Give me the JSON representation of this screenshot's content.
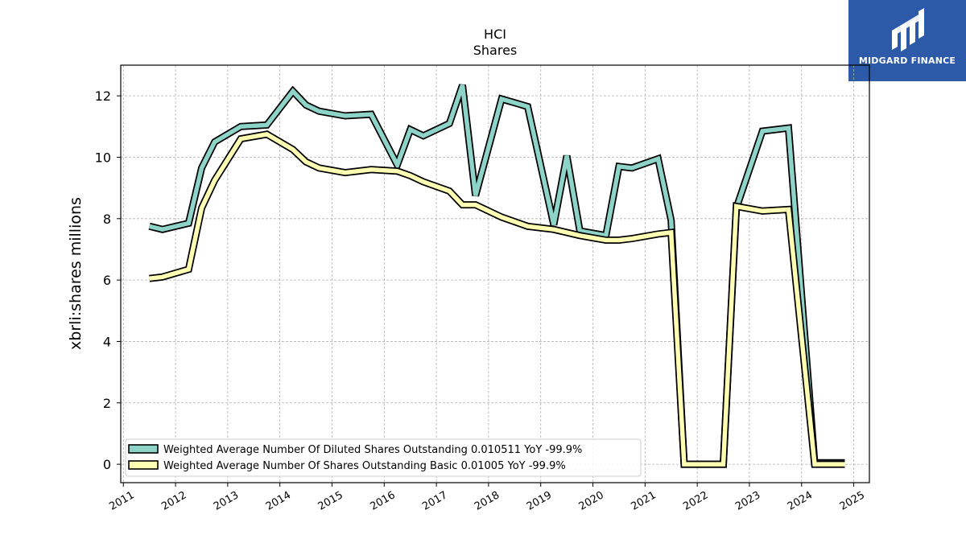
{
  "logo": {
    "text": "MIDGARD FINANCE",
    "icon": "midgard-logo-icon",
    "background": "#2d5aa8"
  },
  "chart_data": {
    "type": "line",
    "title": "HCI",
    "subtitle": "Shares",
    "ylabel": "xbrli:shares millions",
    "xlabel": "",
    "ylim": [
      -0.6,
      13.0
    ],
    "xlim": [
      2010.95,
      2025.3
    ],
    "yticks": [
      0,
      2,
      4,
      6,
      8,
      10,
      12
    ],
    "xticks": [
      "2011",
      "2012",
      "2013",
      "2014",
      "2015",
      "2016",
      "2017",
      "2018",
      "2019",
      "2020",
      "2021",
      "2022",
      "2023",
      "2024",
      "2025"
    ],
    "grid": true,
    "legend_position": "lower-left",
    "series": [
      {
        "name": "Weighted Average Number Of Diluted Shares Outstanding",
        "legend_label": "Weighted Average Number Of Diluted Shares Outstanding  0.010511 YoY -99.9%",
        "color": "#8dd3c7",
        "x": [
          2011.5,
          2011.75,
          2012.25,
          2012.5,
          2012.75,
          2013.25,
          2013.75,
          2014.25,
          2014.5,
          2014.75,
          2015.25,
          2015.75,
          2016.25,
          2016.5,
          2016.75,
          2017.25,
          2017.5,
          2017.75,
          2018.25,
          2018.75,
          2019.25,
          2019.5,
          2019.75,
          2020.25,
          2020.5,
          2020.75,
          2021.25,
          2021.5,
          2021.75,
          2022.5,
          2022.75,
          2023.25,
          2023.75,
          2024.25,
          2024.83
        ],
        "y": [
          7.75,
          7.65,
          7.85,
          9.65,
          10.5,
          11.0,
          11.05,
          12.15,
          11.7,
          11.5,
          11.35,
          11.4,
          9.75,
          10.9,
          10.7,
          11.1,
          12.35,
          8.75,
          11.9,
          11.65,
          7.8,
          10.05,
          7.6,
          7.45,
          9.7,
          9.65,
          9.95,
          7.95,
          0.0,
          0.0,
          8.35,
          10.85,
          10.95,
          0.05,
          0.05
        ]
      },
      {
        "name": "Weighted Average Number Of Shares Outstanding Basic",
        "legend_label": "Weighted Average Number Of Shares Outstanding Basic  0.01005 YoY -99.9%",
        "color": "#ffffb3",
        "x": [
          2011.5,
          2011.75,
          2012.25,
          2012.5,
          2012.75,
          2013.25,
          2013.75,
          2014.25,
          2014.5,
          2014.75,
          2015.25,
          2015.75,
          2016.25,
          2016.5,
          2016.75,
          2017.25,
          2017.5,
          2017.75,
          2018.25,
          2018.75,
          2019.25,
          2019.5,
          2019.75,
          2020.25,
          2020.5,
          2020.75,
          2021.25,
          2021.5,
          2021.75,
          2022.5,
          2022.75,
          2023.25,
          2023.75,
          2024.25,
          2024.83
        ],
        "y": [
          6.05,
          6.1,
          6.35,
          8.35,
          9.25,
          10.6,
          10.75,
          10.25,
          9.85,
          9.65,
          9.5,
          9.6,
          9.55,
          9.4,
          9.2,
          8.9,
          8.45,
          8.45,
          8.05,
          7.75,
          7.65,
          7.55,
          7.45,
          7.3,
          7.3,
          7.35,
          7.5,
          7.55,
          0.0,
          0.0,
          8.4,
          8.25,
          8.3,
          0.0,
          0.0
        ]
      }
    ]
  }
}
